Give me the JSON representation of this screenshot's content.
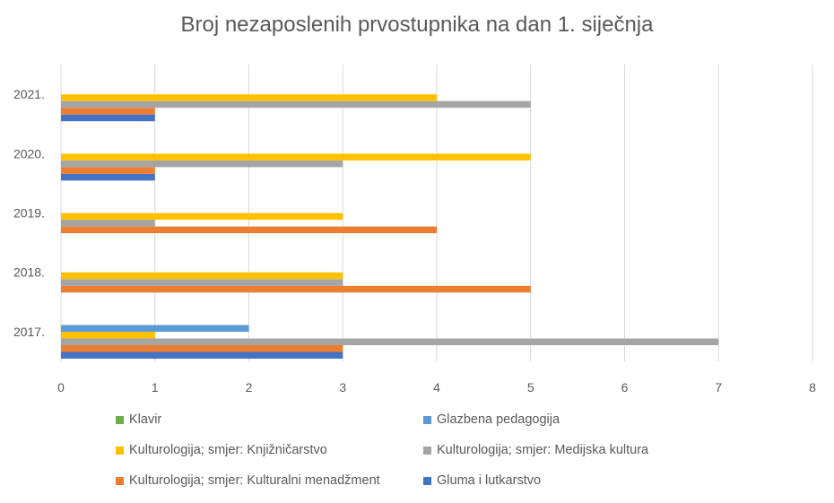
{
  "chart_data": {
    "type": "bar",
    "orientation": "horizontal",
    "title": "Broj nezaposlenih prvostupnika na dan 1. siječnja",
    "categories": [
      "2017.",
      "2018.",
      "2019.",
      "2020.",
      "2021."
    ],
    "xlim": [
      0,
      8
    ],
    "xticks": [
      "0",
      "1",
      "2",
      "3",
      "4",
      "5",
      "6",
      "7",
      "8"
    ],
    "grid": "vertical",
    "legend_position": "bottom",
    "series": [
      {
        "name": "Gluma i lutkarstvo",
        "color": "#4472C4",
        "values": [
          3,
          0,
          0,
          1,
          1
        ]
      },
      {
        "name": "Kulturologija; smjer: Kulturalni menadžment",
        "color": "#ED7D31",
        "values": [
          3,
          5,
          4,
          1,
          1
        ]
      },
      {
        "name": "Kulturologija; smjer: Medijska kultura",
        "color": "#A5A5A5",
        "values": [
          7,
          3,
          1,
          3,
          5
        ]
      },
      {
        "name": "Kulturologija; smjer: Knjižničarstvo",
        "color": "#FFC000",
        "values": [
          1,
          3,
          3,
          5,
          4
        ]
      },
      {
        "name": "Glazbena pedagogija",
        "color": "#5B9BD5",
        "values": [
          2,
          0,
          0,
          0,
          0
        ]
      },
      {
        "name": "Klavir",
        "color": "#70AD47",
        "values": [
          0,
          0,
          0,
          0,
          0
        ]
      }
    ]
  }
}
